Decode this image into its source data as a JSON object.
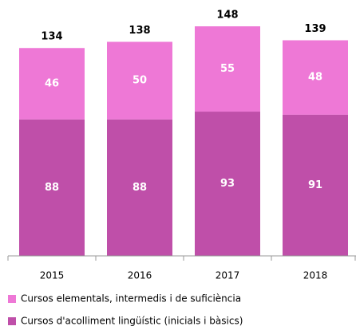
{
  "chart_data": {
    "type": "stacked_bar",
    "categories": [
      "2015",
      "2016",
      "2017",
      "2018"
    ],
    "series": [
      {
        "name": "Cursos d'acolliment lingüístic (inicials i bàsics)",
        "color": "#bf4fa9",
        "values": [
          88,
          88,
          93,
          91
        ]
      },
      {
        "name": "Cursos elementals, intermedis i de suficiència",
        "color": "#ee78d6",
        "values": [
          46,
          50,
          55,
          48
        ]
      }
    ],
    "totals": [
      134,
      138,
      148,
      139
    ]
  }
}
